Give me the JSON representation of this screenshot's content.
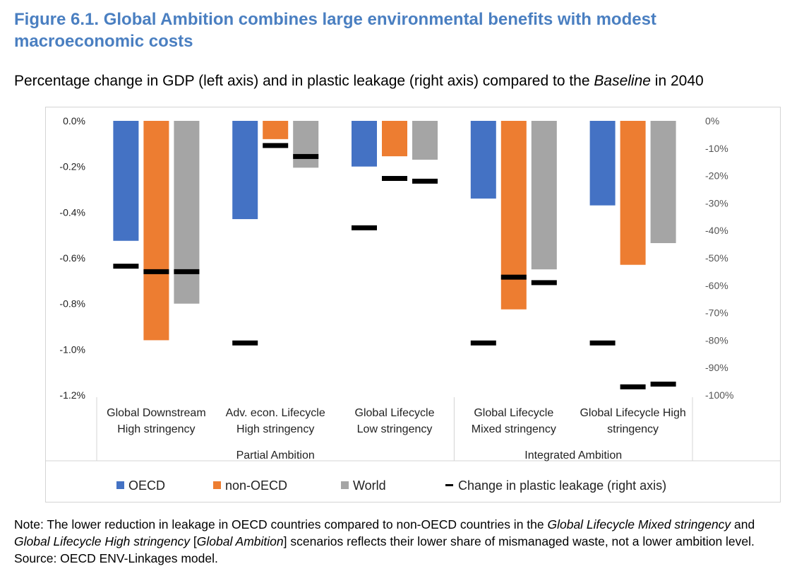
{
  "figure": {
    "title": "Figure 6.1. Global Ambition combines large environmental benefits with modest macroeconomic costs",
    "subtitle_parts": [
      "Percentage change in GDP (left axis) and in plastic leakage (right axis) compared to the ",
      "Baseline",
      " in 2040"
    ],
    "note_parts": [
      "Note: The lower reduction in leakage in OECD countries compared to non-OECD countries in the ",
      "Global Lifecycle Mixed stringency",
      " and ",
      "Global Lifecycle High stringency",
      " [",
      "Global Ambition",
      "] scenarios reflects their lower share of mismanaged waste, not a lower ambition level."
    ],
    "source": "Source: OECD ENV-Linkages model."
  },
  "chart_data": {
    "type": "bar",
    "categories": [
      [
        "Global Downstream",
        "High stringency"
      ],
      [
        "Adv. econ. Lifecycle",
        "High stringency"
      ],
      [
        "Global Lifecycle",
        "Low stringency"
      ],
      [
        "Global Lifecycle",
        "Mixed stringency"
      ],
      [
        "Global Lifecycle High",
        "stringency"
      ]
    ],
    "groups": [
      {
        "label": "Partial Ambition",
        "categories": [
          0,
          1,
          2
        ]
      },
      {
        "label": "Integrated Ambition",
        "categories": [
          3,
          4
        ]
      }
    ],
    "series": [
      {
        "name": "OECD",
        "color": "#4472c4",
        "values": [
          -0.525,
          -0.43,
          -0.2,
          -0.34,
          -0.37
        ]
      },
      {
        "name": "non-OECD",
        "color": "#ed7d31",
        "values": [
          -0.96,
          -0.08,
          -0.155,
          -0.825,
          -0.63
        ]
      },
      {
        "name": "World",
        "color": "#a5a5a5",
        "values": [
          -0.8,
          -0.205,
          -0.17,
          -0.65,
          -0.535
        ]
      }
    ],
    "leakage_series": {
      "name": "Change in plastic leakage (right axis)",
      "color": "#000000",
      "values": [
        [
          -53,
          -55,
          -55
        ],
        [
          -81,
          -9,
          -13
        ],
        [
          -39,
          -21,
          -22
        ],
        [
          -81,
          -57,
          -59
        ],
        [
          -81,
          -97,
          -96
        ]
      ]
    },
    "left_axis": {
      "ticks": [
        "0.0%",
        "-0.2%",
        "-0.4%",
        "-0.6%",
        "-0.8%",
        "-1.0%",
        "-1.2%"
      ],
      "ylim": [
        -1.2,
        0
      ]
    },
    "right_axis": {
      "ticks": [
        "0%",
        "-10%",
        "-20%",
        "-30%",
        "-40%",
        "-50%",
        "-60%",
        "-70%",
        "-80%",
        "-90%",
        "-100%"
      ],
      "ylim": [
        -100,
        0
      ]
    },
    "legend_position": "bottom",
    "grid": false
  }
}
